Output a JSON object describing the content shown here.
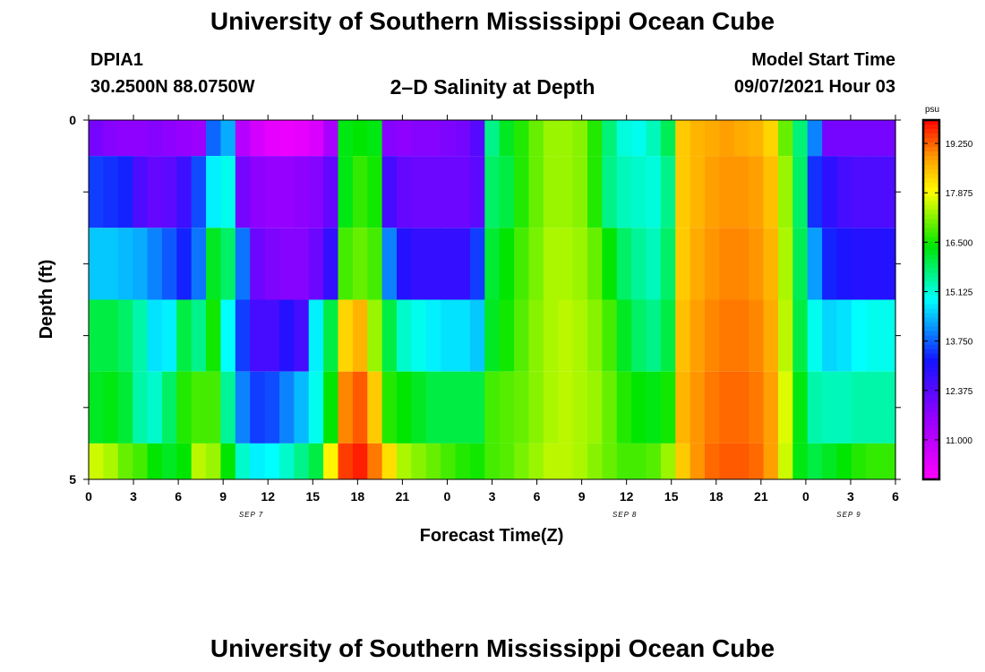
{
  "header": {
    "main_title": "University of Southern Mississippi Ocean Cube",
    "station_id": "DPIA1",
    "station_coords": "30.2500N  88.0750W",
    "chart_title": "2–D Salinity at Depth",
    "model_start_label": "Model Start Time",
    "model_start_value": "09/07/2021 Hour 03"
  },
  "footer": {
    "title": "University of Southern Mississippi Ocean Cube"
  },
  "chart_data": {
    "type": "heatmap",
    "title": "2–D Salinity at Depth",
    "xlabel": "Forecast Time(Z)",
    "ylabel": "Depth (ft)",
    "x_tick_labels": [
      "0",
      "3",
      "6",
      "9",
      "12",
      "15",
      "18",
      "21",
      "0",
      "3",
      "6",
      "9",
      "12",
      "15",
      "18",
      "21",
      "0",
      "3",
      "6"
    ],
    "x_hours": [
      0,
      3,
      6,
      9,
      12,
      15,
      18,
      21,
      24,
      27,
      30,
      33,
      36,
      39,
      42,
      45,
      48,
      51,
      54
    ],
    "xlim": [
      0,
      54
    ],
    "day_labels": [
      {
        "label": "SEP 7",
        "hour": 11
      },
      {
        "label": "SEP 8",
        "hour": 36
      },
      {
        "label": "SEP 9",
        "hour": 51
      }
    ],
    "y_tick_labels": [
      "0",
      "5"
    ],
    "ylim": [
      0,
      5
    ],
    "depth_bands": [
      {
        "top": 0.0,
        "bottom": 0.5
      },
      {
        "top": 0.5,
        "bottom": 1.5
      },
      {
        "top": 1.5,
        "bottom": 2.5
      },
      {
        "top": 2.5,
        "bottom": 3.5
      },
      {
        "top": 3.5,
        "bottom": 4.5
      },
      {
        "top": 4.5,
        "bottom": 5.0
      }
    ],
    "colorbar": {
      "unit": "psu",
      "min": 9.9,
      "max": 19.9,
      "tick_values": [
        11.0,
        12.375,
        13.75,
        15.125,
        16.5,
        17.875,
        19.25
      ],
      "tick_labels": [
        "11.000",
        "12.375",
        "13.750",
        "15.125",
        "16.500",
        "17.875",
        "19.250"
      ]
    },
    "salinity_rows": [
      [
        12.0,
        11.8,
        11.7,
        11.7,
        11.8,
        11.7,
        11.6,
        11.5,
        13.8,
        14.3,
        11.1,
        10.6,
        10.3,
        10.2,
        10.3,
        10.5,
        11.3,
        16.3,
        16.4,
        16.3,
        11.8,
        11.7,
        11.8,
        11.8,
        11.9,
        12.0,
        12.4,
        15.6,
        16.2,
        16.6,
        17.0,
        17.3,
        17.3,
        17.2,
        16.6,
        15.7,
        15.1,
        15.0,
        15.3,
        15.9,
        18.4,
        18.6,
        18.7,
        18.8,
        18.7,
        18.6,
        18.3,
        17.0,
        15.7,
        14.0,
        12.0,
        12.0,
        12.0,
        12.0,
        12.0
      ],
      [
        13.5,
        13.4,
        13.3,
        12.5,
        12.2,
        12.3,
        12.7,
        13.6,
        14.8,
        15.0,
        12.0,
        11.7,
        11.6,
        11.6,
        11.7,
        11.8,
        12.2,
        16.3,
        16.7,
        16.5,
        12.6,
        12.2,
        12.1,
        12.1,
        12.1,
        12.1,
        12.3,
        15.8,
        16.0,
        16.6,
        17.0,
        17.3,
        17.3,
        17.2,
        16.6,
        15.6,
        15.3,
        15.2,
        15.1,
        15.6,
        18.4,
        18.6,
        18.8,
        18.9,
        18.9,
        18.8,
        18.5,
        17.3,
        15.8,
        13.4,
        12.9,
        12.6,
        12.5,
        12.5,
        12.5
      ],
      [
        14.5,
        14.5,
        14.4,
        14.3,
        14.0,
        13.7,
        13.3,
        13.9,
        16.2,
        15.8,
        13.9,
        12.1,
        11.9,
        11.8,
        11.8,
        12.1,
        12.8,
        16.8,
        17.0,
        16.8,
        14.0,
        13.0,
        12.8,
        12.8,
        12.8,
        12.8,
        13.5,
        16.1,
        16.4,
        16.8,
        17.1,
        17.4,
        17.4,
        17.3,
        17.0,
        16.4,
        15.8,
        15.5,
        15.3,
        15.8,
        18.4,
        18.7,
        18.9,
        19.0,
        19.0,
        18.9,
        18.6,
        17.4,
        15.9,
        14.2,
        13.3,
        13.1,
        13.0,
        13.0,
        13.0
      ],
      [
        16.0,
        16.0,
        15.8,
        15.4,
        14.7,
        14.8,
        16.0,
        15.6,
        16.5,
        14.9,
        13.5,
        12.6,
        12.6,
        13.0,
        12.6,
        14.8,
        16.0,
        18.3,
        18.6,
        17.3,
        16.0,
        15.2,
        15.0,
        14.8,
        14.7,
        14.7,
        14.5,
        16.2,
        16.5,
        16.9,
        17.2,
        17.4,
        17.5,
        17.4,
        17.2,
        16.8,
        16.2,
        15.8,
        15.6,
        16.0,
        18.5,
        18.8,
        19.0,
        19.1,
        19.1,
        19.0,
        18.7,
        17.5,
        16.0,
        15.0,
        14.6,
        14.7,
        14.9,
        15.0,
        15.0
      ],
      [
        16.2,
        16.3,
        16.1,
        15.4,
        15.2,
        15.8,
        16.6,
        16.8,
        16.8,
        15.5,
        14.0,
        13.5,
        13.6,
        14.0,
        14.4,
        15.0,
        16.4,
        19.0,
        19.3,
        18.4,
        16.6,
        16.4,
        16.2,
        16.0,
        16.0,
        16.0,
        16.0,
        16.8,
        16.9,
        17.0,
        17.2,
        17.4,
        17.5,
        17.4,
        17.3,
        17.0,
        16.6,
        16.4,
        16.3,
        16.5,
        18.6,
        18.9,
        19.1,
        19.2,
        19.2,
        19.1,
        18.8,
        17.7,
        16.3,
        15.4,
        15.3,
        15.3,
        15.4,
        15.4,
        15.4
      ],
      [
        17.6,
        17.4,
        17.0,
        16.8,
        16.4,
        16.2,
        16.4,
        17.5,
        17.3,
        16.4,
        15.2,
        14.8,
        14.9,
        15.2,
        15.6,
        16.0,
        18.0,
        19.5,
        19.7,
        19.1,
        18.2,
        17.4,
        17.2,
        17.0,
        16.8,
        16.6,
        16.5,
        16.8,
        16.9,
        17.1,
        17.3,
        17.5,
        17.5,
        17.4,
        17.2,
        17.0,
        16.8,
        16.8,
        16.9,
        17.3,
        18.4,
        18.9,
        19.2,
        19.3,
        19.3,
        19.2,
        18.8,
        17.6,
        16.3,
        16.0,
        16.2,
        16.4,
        16.6,
        16.7,
        16.7
      ]
    ]
  }
}
